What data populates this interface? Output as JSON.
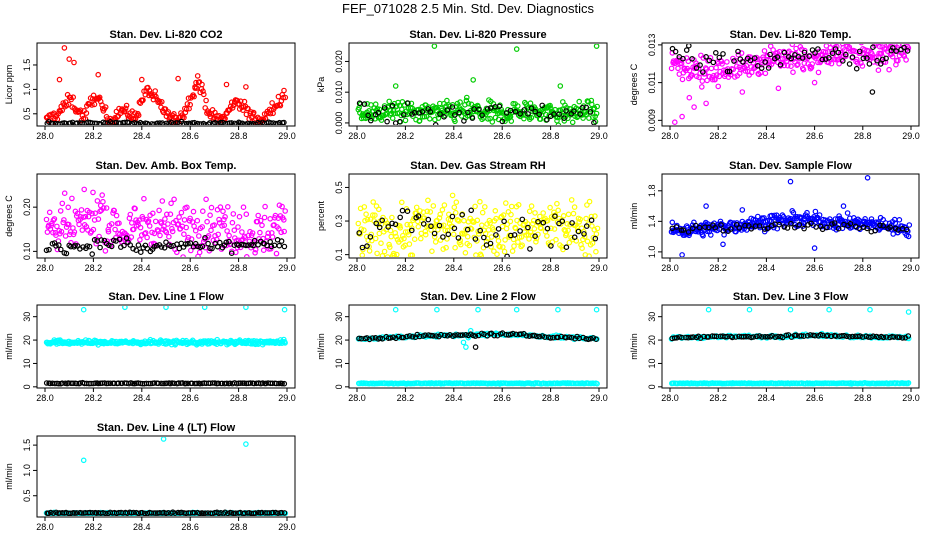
{
  "title": "FEF_071028  2.5 Min. Std. Dev. Diagnostics",
  "colors": {
    "red": "#ff0000",
    "green": "#00cc00",
    "magenta": "#ff00ff",
    "yellow": "#ffff00",
    "blue": "#0000ff",
    "cyan": "#00ffff",
    "black": "#000000"
  },
  "chart_data": [
    {
      "type": "scatter",
      "title": "Stan. Dev. Li-820 CO2",
      "ylabel": "Licor ppm",
      "xlim": [
        28.0,
        29.0
      ],
      "ylim": [
        0.25,
        1.95
      ],
      "xticks": [
        "28.0",
        "28.2",
        "28.4",
        "28.6",
        "28.8",
        "29.0"
      ],
      "yticks": [
        "0.5",
        "1.0",
        "1.5"
      ],
      "series": [
        {
          "name": "main",
          "color": "red",
          "base": [
            0.33,
            0.5,
            0.8,
            0.42,
            0.9,
            0.35,
            0.6,
            0.4,
            1.0,
            0.7,
            0.36,
            0.55,
            1.2,
            0.45,
            0.38,
            0.8,
            0.5,
            0.34,
            0.65,
            0.9
          ],
          "spread": 0.12,
          "n": 260,
          "outliers": [
            [
              28.08,
              1.85
            ],
            [
              28.1,
              1.62
            ],
            [
              28.12,
              1.55
            ],
            [
              28.06,
              1.2
            ],
            [
              28.22,
              1.3
            ],
            [
              28.4,
              1.2
            ],
            [
              28.55,
              1.22
            ],
            [
              28.62,
              1.05
            ],
            [
              28.75,
              1.1
            ],
            [
              28.83,
              1.05
            ]
          ]
        },
        {
          "name": "dark",
          "color": "black",
          "base": [
            0.3,
            0.31,
            0.3,
            0.32,
            0.3,
            0.31,
            0.3,
            0.31,
            0.3,
            0.31
          ],
          "spread": 0.02,
          "n": 110,
          "outliers": []
        }
      ]
    },
    {
      "type": "scatter",
      "title": "Stan. Dev. Li-820 Pressure",
      "ylabel": "kPa",
      "xlim": [
        28.0,
        29.0
      ],
      "ylim": [
        -0.001,
        0.026
      ],
      "xticks": [
        "28.0",
        "28.2",
        "28.4",
        "28.6",
        "28.8",
        "29.0"
      ],
      "yticks": [
        "0.000",
        "0.010",
        "0.020"
      ],
      "series": [
        {
          "name": "main",
          "color": "green",
          "base": [
            0.003,
            0.004,
            0.003,
            0.004,
            0.003,
            0.004,
            0.003,
            0.004
          ],
          "spread": 0.003,
          "n": 320,
          "outliers": [
            [
              28.32,
              0.025
            ],
            [
              28.66,
              0.024
            ],
            [
              28.99,
              0.025
            ],
            [
              28.16,
              0.012
            ],
            [
              28.48,
              0.014
            ],
            [
              28.84,
              0.012
            ]
          ]
        },
        {
          "name": "dark",
          "color": "black",
          "base": [
            0.003,
            0.0032,
            0.003,
            0.0035,
            0.003
          ],
          "spread": 0.003,
          "n": 60,
          "outliers": []
        }
      ]
    },
    {
      "type": "scatter",
      "title": "Stan. Dev. Li-820 Temp.",
      "ylabel": "degrees C",
      "xlim": [
        28.0,
        29.0
      ],
      "ylim": [
        0.0087,
        0.0131
      ],
      "xticks": [
        "28.0",
        "28.2",
        "28.4",
        "28.6",
        "28.8",
        "29.0"
      ],
      "yticks": [
        "0.009",
        "0.011",
        "0.013"
      ],
      "series": [
        {
          "name": "main",
          "color": "magenta",
          "base": [
            0.0122,
            0.0115,
            0.0118,
            0.0124,
            0.0121,
            0.0126,
            0.0125,
            0.0127
          ],
          "spread": 0.0006,
          "n": 300,
          "outliers": [
            [
              28.02,
              0.0089
            ],
            [
              28.05,
              0.0092
            ],
            [
              28.1,
              0.0097
            ],
            [
              28.15,
              0.0099
            ],
            [
              28.08,
              0.0102
            ],
            [
              28.3,
              0.0105
            ],
            [
              28.2,
              0.0108
            ],
            [
              28.45,
              0.0107
            ],
            [
              28.6,
              0.011
            ]
          ]
        },
        {
          "name": "dark",
          "color": "black",
          "base": [
            0.0125,
            0.0122,
            0.0121,
            0.0126,
            0.0124,
            0.0127
          ],
          "spread": 0.0005,
          "n": 70,
          "outliers": [
            [
              28.84,
              0.0105
            ]
          ]
        }
      ]
    },
    {
      "type": "scatter",
      "title": "Stan. Dev. Amb. Box Temp.",
      "ylabel": "degrees C",
      "xlim": [
        28.0,
        29.0
      ],
      "ylim": [
        0.085,
        0.275
      ],
      "xticks": [
        "28.0",
        "28.2",
        "28.4",
        "28.6",
        "28.8",
        "29.0"
      ],
      "yticks": [
        "0.10",
        "0.20"
      ],
      "series": [
        {
          "name": "main",
          "color": "magenta",
          "base": [
            0.16,
            0.15,
            0.18,
            0.14,
            0.17,
            0.15,
            0.16,
            0.15,
            0.14,
            0.16
          ],
          "spread": 0.05,
          "n": 300,
          "outliers": []
        },
        {
          "name": "dark",
          "color": "black",
          "base": [
            0.115,
            0.11,
            0.12,
            0.105,
            0.115,
            0.11,
            0.12,
            0.11
          ],
          "spread": 0.012,
          "n": 100,
          "outliers": []
        }
      ]
    },
    {
      "type": "scatter",
      "title": "Stan. Dev. Gas Stream RH",
      "ylabel": "percent",
      "xlim": [
        28.0,
        29.0
      ],
      "ylim": [
        0.08,
        0.58
      ],
      "xticks": [
        "28.0",
        "28.2",
        "28.4",
        "28.6",
        "28.8",
        "29.0"
      ],
      "yticks": [
        "0.1",
        "0.3",
        "0.5"
      ],
      "series": [
        {
          "name": "main",
          "color": "yellow",
          "base": [
            0.25,
            0.22,
            0.28,
            0.26,
            0.24,
            0.27,
            0.25,
            0.26
          ],
          "spread": 0.14,
          "n": 320,
          "outliers": []
        },
        {
          "name": "dark",
          "color": "black",
          "base": [
            0.2,
            0.3,
            0.25,
            0.2,
            0.28,
            0.22
          ],
          "spread": 0.1,
          "n": 60,
          "outliers": []
        }
      ]
    },
    {
      "type": "scatter",
      "title": "Stan. Dev. Sample Flow",
      "ylabel": "ml/min",
      "xlim": [
        28.0,
        29.0
      ],
      "ylim": [
        0.92,
        2.02
      ],
      "xticks": [
        "28.0",
        "28.2",
        "28.4",
        "28.6",
        "28.8",
        "29.0"
      ],
      "yticks": [
        "1.0",
        "1.4",
        "1.8"
      ],
      "series": [
        {
          "name": "main",
          "color": "blue",
          "base": [
            1.28,
            1.3,
            1.35,
            1.4,
            1.42,
            1.38,
            1.36,
            1.3
          ],
          "spread": 0.08,
          "n": 340,
          "outliers": [
            [
              28.5,
              1.92
            ],
            [
              28.82,
              1.97
            ],
            [
              28.05,
              0.96
            ],
            [
              28.22,
              1.1
            ],
            [
              28.6,
              1.05
            ],
            [
              28.72,
              1.6
            ],
            [
              28.3,
              1.55
            ],
            [
              28.15,
              1.6
            ]
          ]
        },
        {
          "name": "dark",
          "color": "black",
          "base": [
            1.3,
            1.32,
            1.35,
            1.33,
            1.3
          ],
          "spread": 0.05,
          "n": 60,
          "outliers": []
        }
      ]
    },
    {
      "type": "scatter",
      "title": "Stan. Dev. Line 1 Flow",
      "ylabel": "ml/min",
      "xlim": [
        28.0,
        29.0
      ],
      "ylim": [
        -0.5,
        35
      ],
      "xticks": [
        "28.0",
        "28.2",
        "28.4",
        "28.6",
        "28.8",
        "29.0"
      ],
      "yticks": [
        "0",
        "10",
        "20",
        "30"
      ],
      "series": [
        {
          "name": "main",
          "color": "cyan",
          "base": [
            19
          ],
          "spread": 0.8,
          "n": 300,
          "outliers": [
            [
              28.16,
              33
            ],
            [
              28.33,
              34
            ],
            [
              28.5,
              34
            ],
            [
              28.66,
              34
            ],
            [
              28.83,
              34
            ],
            [
              28.99,
              33
            ]
          ]
        },
        {
          "name": "dark",
          "color": "black",
          "base": [
            1.5
          ],
          "spread": 0.15,
          "n": 120,
          "outliers": []
        }
      ]
    },
    {
      "type": "scatter",
      "title": "Stan. Dev. Line 2 Flow",
      "ylabel": "ml/min",
      "xlim": [
        28.0,
        29.0
      ],
      "ylim": [
        -0.5,
        35
      ],
      "xticks": [
        "28.0",
        "28.2",
        "28.4",
        "28.6",
        "28.8",
        "29.0"
      ],
      "yticks": [
        "0",
        "10",
        "20",
        "30"
      ],
      "series": [
        {
          "name": "main",
          "color": "cyan",
          "base": [
            1.5
          ],
          "spread": 0.15,
          "n": 180,
          "outliers": [
            [
              28.16,
              33
            ],
            [
              28.33,
              33
            ],
            [
              28.5,
              33
            ],
            [
              28.66,
              33
            ],
            [
              28.83,
              33
            ],
            [
              28.99,
              33
            ],
            [
              28.45,
              17
            ],
            [
              28.47,
              24
            ],
            [
              28.44,
              19
            ],
            [
              28.46,
              21
            ]
          ]
        },
        {
          "name": "upper",
          "color": "cyan",
          "base": [
            20.5,
            21.5,
            22,
            22.5,
            21.5,
            20.5
          ],
          "spread": 0.5,
          "n": 160,
          "outliers": []
        },
        {
          "name": "dark",
          "color": "black",
          "base": [
            20.5,
            21.5,
            22,
            22.5,
            21.5,
            20.5
          ],
          "spread": 0.5,
          "n": 90,
          "outliers": [
            [
              28.49,
              17
            ]
          ]
        }
      ]
    },
    {
      "type": "scatter",
      "title": "Stan. Dev. Line 3 Flow",
      "ylabel": "ml/min",
      "xlim": [
        28.0,
        29.0
      ],
      "ylim": [
        -0.5,
        35
      ],
      "xticks": [
        "28.0",
        "28.2",
        "28.4",
        "28.6",
        "28.8",
        "29.0"
      ],
      "yticks": [
        "0",
        "10",
        "20",
        "30"
      ],
      "series": [
        {
          "name": "main",
          "color": "cyan",
          "base": [
            1.5
          ],
          "spread": 0.15,
          "n": 180,
          "outliers": [
            [
              28.16,
              33
            ],
            [
              28.33,
              33
            ],
            [
              28.5,
              33
            ],
            [
              28.66,
              33
            ],
            [
              28.83,
              33
            ],
            [
              28.99,
              32
            ]
          ]
        },
        {
          "name": "upper",
          "color": "cyan",
          "base": [
            21,
            21.5,
            21.5,
            22,
            21.5,
            21
          ],
          "spread": 0.5,
          "n": 160,
          "outliers": []
        },
        {
          "name": "dark",
          "color": "black",
          "base": [
            21,
            21.5,
            21.5,
            22,
            21.5,
            21
          ],
          "spread": 0.4,
          "n": 90,
          "outliers": []
        }
      ]
    },
    {
      "type": "scatter",
      "title": "Stan. Dev. Line 4 (LT) Flow",
      "ylabel": "ml/min",
      "xlim": [
        28.0,
        29.0
      ],
      "ylim": [
        0.08,
        1.68
      ],
      "xticks": [
        "28.0",
        "28.2",
        "28.4",
        "28.6",
        "28.8",
        "29.0"
      ],
      "yticks": [
        "0.5",
        "1.0",
        "1.5"
      ],
      "series": [
        {
          "name": "main",
          "color": "cyan",
          "base": [
            0.15
          ],
          "spread": 0.015,
          "n": 260,
          "outliers": [
            [
              28.16,
              1.2
            ],
            [
              28.49,
              1.62
            ],
            [
              28.83,
              1.52
            ]
          ]
        },
        {
          "name": "dark",
          "color": "black",
          "base": [
            0.16
          ],
          "spread": 0.012,
          "n": 110,
          "outliers": []
        }
      ]
    }
  ]
}
